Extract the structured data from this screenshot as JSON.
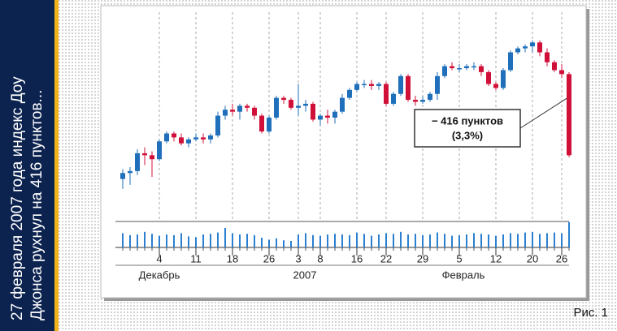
{
  "caption": [
    "27 февраля 2007 года индекс Доу",
    "Джонса рухнул на 416 пунктов..."
  ],
  "figure_label": "Рис. 1",
  "chart_data": {
    "type": "candlestick",
    "categories": [
      null,
      null,
      null,
      null,
      null,
      "4",
      null,
      null,
      null,
      null,
      "11",
      null,
      null,
      null,
      null,
      "18",
      null,
      null,
      null,
      null,
      "26",
      null,
      null,
      null,
      "3",
      null,
      null,
      "8",
      null,
      null,
      null,
      null,
      "16",
      null,
      null,
      null,
      "22",
      null,
      null,
      null,
      null,
      "29",
      null,
      null,
      null,
      null,
      "5",
      null,
      null,
      null,
      null,
      "12",
      null,
      null,
      null,
      null,
      "20",
      null,
      null,
      null,
      "26",
      null
    ],
    "period_labels": [
      "Декабрь",
      "2007",
      "Февраль"
    ],
    "open": [
      12100,
      12130,
      12140,
      12230,
      12220,
      12200,
      12290,
      12330,
      12310,
      12280,
      12300,
      12310,
      12300,
      12320,
      12420,
      12450,
      12440,
      12470,
      12460,
      12420,
      12340,
      12410,
      12510,
      12500,
      12460,
      12470,
      12480,
      12400,
      12420,
      12410,
      12440,
      12510,
      12550,
      12580,
      12580,
      12570,
      12580,
      12480,
      12530,
      12620,
      12500,
      12490,
      12500,
      12530,
      12620,
      12670,
      12660,
      12660,
      12670,
      12670,
      12640,
      12580,
      12560,
      12650,
      12740,
      12760,
      12770,
      12790,
      12740,
      12690,
      12650,
      12630
    ],
    "high": [
      12150,
      12160,
      12250,
      12260,
      12240,
      12300,
      12340,
      12340,
      12330,
      12310,
      12330,
      12330,
      12330,
      12440,
      12470,
      12480,
      12480,
      12480,
      12470,
      12430,
      12420,
      12520,
      12520,
      12510,
      12580,
      12500,
      12490,
      12430,
      12450,
      12450,
      12530,
      12560,
      12590,
      12600,
      12600,
      12590,
      12590,
      12540,
      12630,
      12630,
      12520,
      12520,
      12540,
      12640,
      12680,
      12690,
      12680,
      12680,
      12690,
      12680,
      12650,
      12590,
      12660,
      12750,
      12770,
      12780,
      12800,
      12800,
      12760,
      12700,
      12680,
      12640
    ],
    "low": [
      12050,
      12070,
      12120,
      12170,
      12110,
      12190,
      12280,
      12290,
      12270,
      12260,
      12290,
      12280,
      12280,
      12310,
      12400,
      12420,
      12400,
      12440,
      12400,
      12330,
      12330,
      12400,
      12480,
      12450,
      12420,
      12440,
      12390,
      12370,
      12380,
      12380,
      12430,
      12500,
      12540,
      12560,
      12550,
      12550,
      12470,
      12470,
      12520,
      12490,
      12470,
      12480,
      12490,
      12500,
      12610,
      12650,
      12640,
      12650,
      12650,
      12620,
      12570,
      12550,
      12550,
      12640,
      12730,
      12740,
      12740,
      12720,
      12670,
      12640,
      12610,
      12210
    ],
    "close": [
      12130,
      12140,
      12230,
      12220,
      12200,
      12290,
      12330,
      12310,
      12280,
      12300,
      12310,
      12300,
      12320,
      12420,
      12450,
      12440,
      12470,
      12460,
      12420,
      12340,
      12410,
      12510,
      12500,
      12460,
      12470,
      12480,
      12400,
      12420,
      12410,
      12440,
      12510,
      12550,
      12580,
      12580,
      12570,
      12580,
      12480,
      12530,
      12620,
      12500,
      12490,
      12500,
      12530,
      12620,
      12670,
      12660,
      12660,
      12670,
      12670,
      12640,
      12580,
      12560,
      12650,
      12740,
      12760,
      12770,
      12790,
      12740,
      12690,
      12650,
      12630,
      12220
    ],
    "volume": [
      2.2,
      1.9,
      2.0,
      2.4,
      2.1,
      1.8,
      2.0,
      1.9,
      2.2,
      1.7,
      1.6,
      2.0,
      2.1,
      2.3,
      3.0,
      2.2,
      2.0,
      2.1,
      1.9,
      1.5,
      1.2,
      1.4,
      1.1,
      1.0,
      2.0,
      2.2,
      1.9,
      1.8,
      2.0,
      2.1,
      2.0,
      1.9,
      2.3,
      2.1,
      1.8,
      2.0,
      2.2,
      2.1,
      2.4,
      2.0,
      2.1,
      1.9,
      2.0,
      2.3,
      2.1,
      1.8,
      1.9,
      2.0,
      2.2,
      2.1,
      2.0,
      1.8,
      2.0,
      2.2,
      2.1,
      2.3,
      2.4,
      2.1,
      2.2,
      2.3,
      2.2,
      3.9
    ],
    "ylim": [
      12000,
      12820
    ],
    "volume_lim": [
      0,
      4
    ],
    "up_color": "#1f6fba",
    "down_color": "#d01038",
    "annotation": [
      "− 416 пунктов",
      "(3,3%)"
    ]
  }
}
